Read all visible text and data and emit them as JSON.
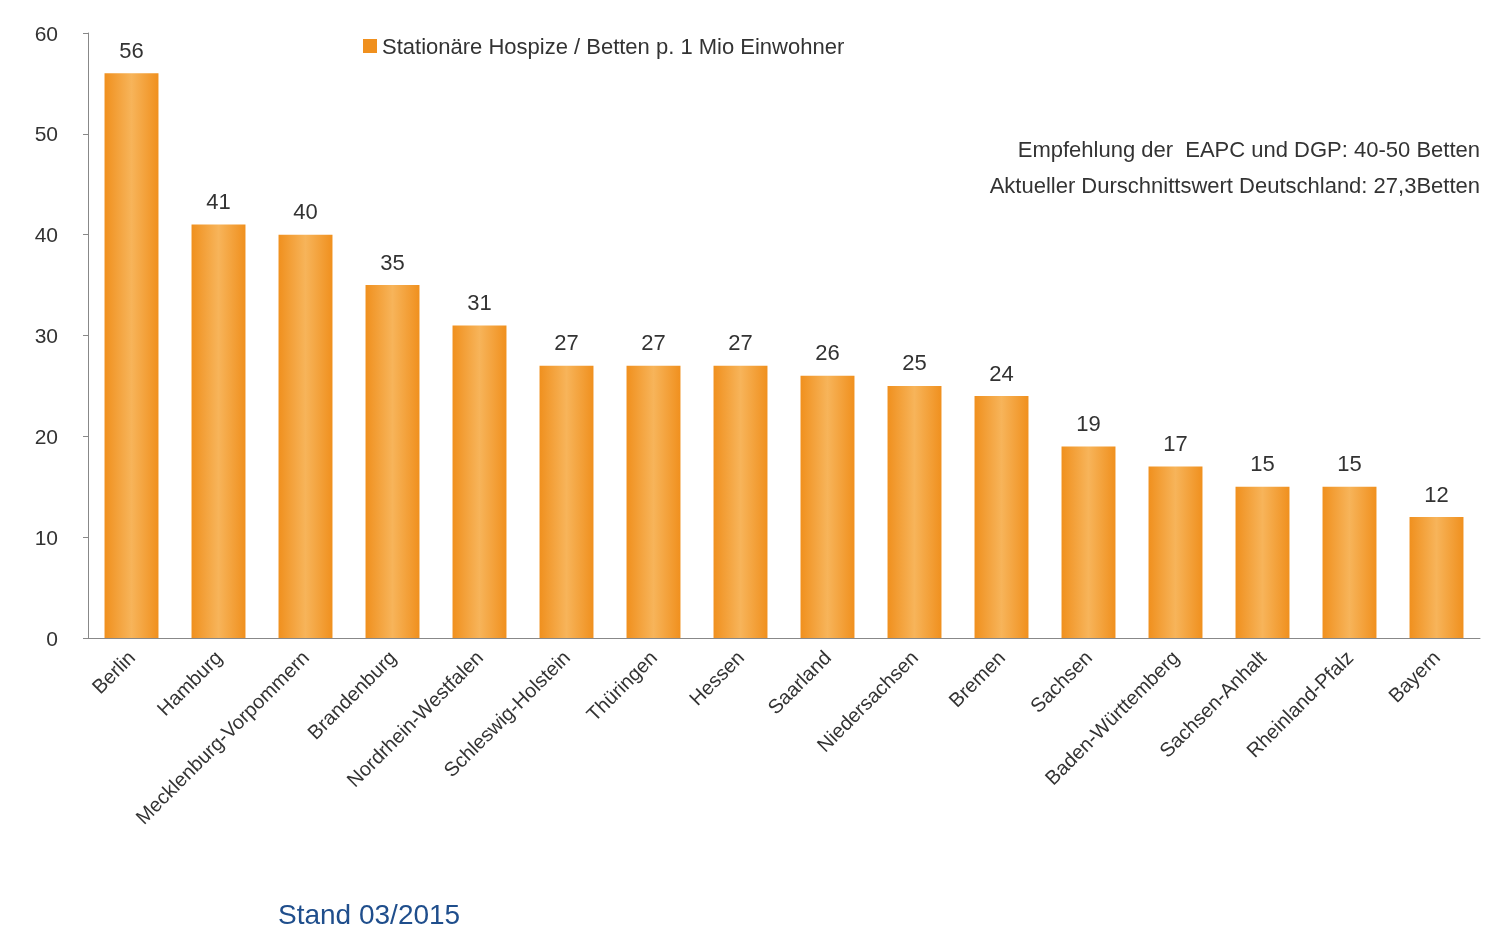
{
  "chart_data": {
    "type": "bar",
    "categories": [
      "Berlin",
      "Hamburg",
      "Mecklenburg-Vorpommern",
      "Brandenburg",
      "Nordrhein-Westfalen",
      "Schleswig-Holstein",
      "Thüringen",
      "Hessen",
      "Saarland",
      "Niedersachsen",
      "Bremen",
      "Sachsen",
      "Baden-Württemberg",
      "Sachsen-Anhalt",
      "Rheinland-Pfalz",
      "Bayern"
    ],
    "series": [
      {
        "name": "Stationäre Hospize / Betten p. 1 Mio Einwohner",
        "color": "#f0901e",
        "values": [
          56,
          41,
          40,
          35,
          31,
          27,
          27,
          27,
          26,
          25,
          24,
          19,
          17,
          15,
          15,
          12
        ]
      }
    ],
    "ylim": [
      0,
      60
    ],
    "yticks": [
      0,
      10,
      20,
      30,
      40,
      50,
      60
    ],
    "grid": false,
    "legend": "top",
    "data_labels": true,
    "annotations": [
      "Empfehlung der  EAPC und DGP: 40-50 Betten",
      "Aktueller Durschnittswert Deutschland: 27,3Betten",
      "Stand 03/2015"
    ]
  }
}
